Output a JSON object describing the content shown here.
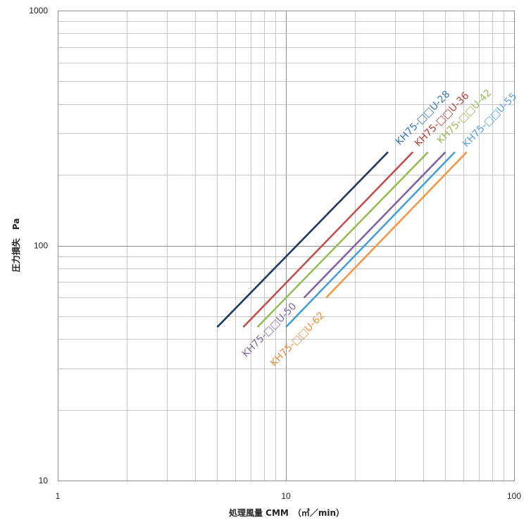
{
  "chart_data": {
    "type": "line",
    "xlabel": "処理風量 CMM　（㎥／min）",
    "ylabel": "圧力損失　Pa",
    "xscale": "log",
    "yscale": "log",
    "xlim": [
      1,
      100
    ],
    "ylim": [
      10,
      1000
    ],
    "x_ticks": [
      1,
      10,
      100
    ],
    "x_tick_labels": [
      "1",
      "10",
      "100"
    ],
    "y_ticks": [
      10,
      100,
      1000
    ],
    "y_tick_labels": [
      "10",
      "100",
      "1000"
    ],
    "grid": true,
    "series": [
      {
        "name": "KH75-□□U-28",
        "line_color": "#1f3864",
        "label_color": "#3a7ab5",
        "x": [
          5,
          28
        ],
        "y": [
          45,
          250
        ]
      },
      {
        "name": "KH75-□□U-36",
        "line_color": "#c0504d",
        "label_color": "#b8403c",
        "x": [
          6.5,
          36
        ],
        "y": [
          45,
          250
        ]
      },
      {
        "name": "KH75-□□U-42",
        "line_color": "#9bbb59",
        "label_color": "#9bbb59",
        "x": [
          7.5,
          42
        ],
        "y": [
          45,
          250
        ]
      },
      {
        "name": "KH75-□□U-50",
        "line_color": "#8064a2",
        "label_color": "#7f6d9c",
        "x": [
          12,
          50
        ],
        "y": [
          60,
          250
        ]
      },
      {
        "name": "KH75-□□U-55",
        "line_color": "#4a9fd4",
        "label_color": "#5fa3d8",
        "x": [
          10,
          55
        ],
        "y": [
          45,
          250
        ]
      },
      {
        "name": "KH75-□□U-62",
        "line_color": "#f79646",
        "label_color": "#e8923e",
        "x": [
          15,
          62
        ],
        "y": [
          60,
          250
        ]
      }
    ]
  }
}
